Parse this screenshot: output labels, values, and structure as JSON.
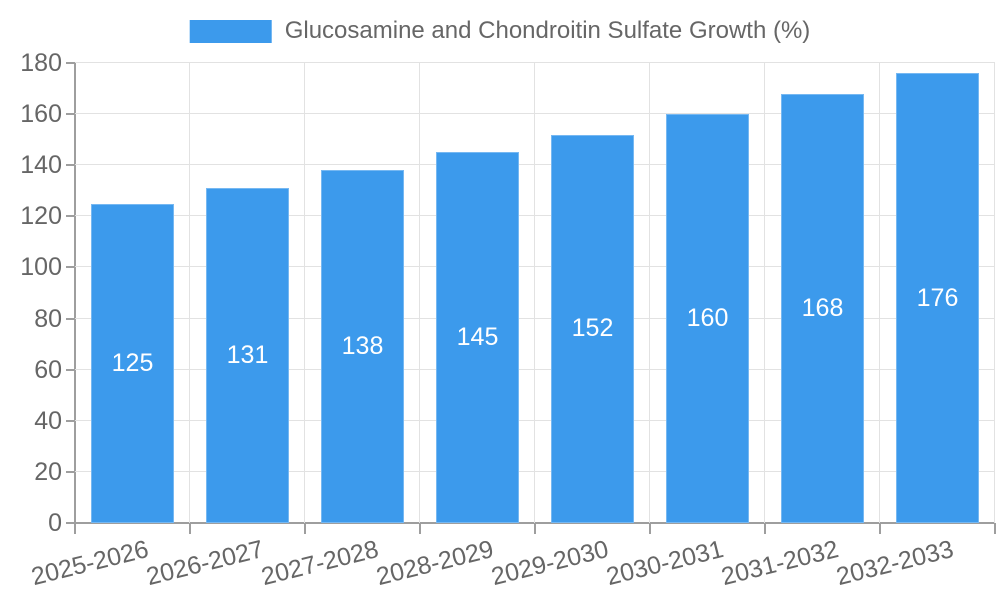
{
  "chart_data": {
    "type": "bar",
    "title": "Glucosamine and Chondroitin Sulfate Growth (%)",
    "categories": [
      "2025-2026",
      "2026-2027",
      "2027-2028",
      "2028-2029",
      "2029-2030",
      "2030-2031",
      "2031-2032",
      "2032-2033"
    ],
    "values": [
      125,
      131,
      138,
      145,
      152,
      160,
      168,
      176
    ],
    "series": [
      {
        "name": "Glucosamine and Chondroitin Sulfate Growth (%)",
        "values": [
          125,
          131,
          138,
          145,
          152,
          160,
          168,
          176
        ]
      }
    ],
    "xlabel": "",
    "ylabel": "",
    "ylim": [
      0,
      180
    ],
    "yticks": [
      0,
      20,
      40,
      60,
      80,
      100,
      120,
      140,
      160,
      180
    ],
    "grid": true,
    "legend_position": "top",
    "value_label_position": "inside-center",
    "colors": {
      "bar": "#3C9AEC",
      "grid": "#E2E2E2",
      "axis": "#9E9E9E",
      "text": "#666666",
      "value_label": "#FFFFFF"
    }
  }
}
